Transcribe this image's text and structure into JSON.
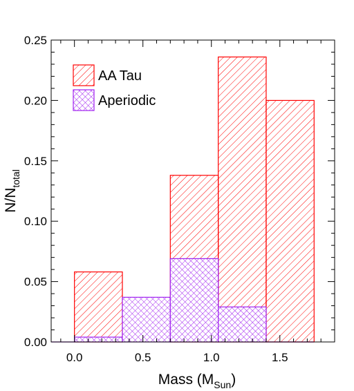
{
  "chart_data": {
    "type": "histogram",
    "xlabel": "Mass (M",
    "xlabel_sub": "Sun",
    "xlabel_close": ")",
    "ylabel": "N/N",
    "ylabel_sub": "total",
    "xlim": [
      -0.17,
      1.9
    ],
    "ylim": [
      0.0,
      0.25
    ],
    "x_ticks": [
      {
        "value": 0.0,
        "label": "0.0"
      },
      {
        "value": 0.5,
        "label": "0.5"
      },
      {
        "value": 1.0,
        "label": "1.0"
      },
      {
        "value": 1.5,
        "label": "1.5"
      }
    ],
    "y_ticks": [
      {
        "value": 0.0,
        "label": "0.00"
      },
      {
        "value": 0.05,
        "label": "0.05"
      },
      {
        "value": 0.1,
        "label": "0.10"
      },
      {
        "value": 0.15,
        "label": "0.15"
      },
      {
        "value": 0.2,
        "label": "0.20"
      },
      {
        "value": 0.25,
        "label": "0.25"
      }
    ],
    "bin_edges": [
      0.0,
      0.35,
      0.7,
      1.05,
      1.4,
      1.75
    ],
    "legend_position": "top-left",
    "series": [
      {
        "name": "AA Tau",
        "color": "#ff0000",
        "hatch": "diagonal-back",
        "values": [
          0.058,
          0.0,
          0.138,
          0.236,
          0.2
        ]
      },
      {
        "name": "Aperiodic",
        "color": "#a020f0",
        "hatch": "cross",
        "values": [
          0.004,
          0.037,
          0.069,
          0.029,
          0.0
        ]
      }
    ]
  }
}
